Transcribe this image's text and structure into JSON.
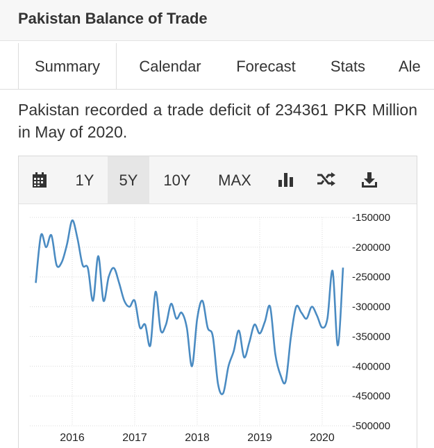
{
  "header": {
    "title": "Pakistan Balance of Trade"
  },
  "tabs": [
    {
      "label": "Summary",
      "active": true
    },
    {
      "label": "Calendar"
    },
    {
      "label": "Forecast"
    },
    {
      "label": "Stats"
    },
    {
      "label": "Ale"
    }
  ],
  "summary": {
    "text": "Pakistan recorded a trade deficit of 234361 PKR Million in May of 2020."
  },
  "toolbar": {
    "calendar_icon": "calendar-icon",
    "ranges": [
      "1Y",
      "5Y",
      "10Y",
      "MAX"
    ],
    "active_range": "5Y",
    "bar_chart_icon": "bar-chart-icon",
    "shuffle_icon": "shuffle-icon",
    "download_icon": "download-icon"
  },
  "chart_data": {
    "type": "line",
    "title": "",
    "xlabel": "",
    "ylabel": "",
    "line_color": "#4a8bc2",
    "y_ticks": [
      "-150000",
      "-200000",
      "-250000",
      "-300000",
      "-350000",
      "-400000",
      "-450000",
      "-500000"
    ],
    "x_ticks": [
      "2016",
      "2017",
      "2018",
      "2019",
      "2020"
    ],
    "ylim": [
      -500000,
      -150000
    ],
    "x": [
      "2015-06",
      "2015-07",
      "2015-08",
      "2015-09",
      "2015-10",
      "2015-11",
      "2015-12",
      "2016-01",
      "2016-02",
      "2016-03",
      "2016-04",
      "2016-05",
      "2016-06",
      "2016-07",
      "2016-08",
      "2016-09",
      "2016-10",
      "2016-11",
      "2016-12",
      "2017-01",
      "2017-02",
      "2017-03",
      "2017-04",
      "2017-05",
      "2017-06",
      "2017-07",
      "2017-08",
      "2017-09",
      "2017-10",
      "2017-11",
      "2017-12",
      "2018-01",
      "2018-02",
      "2018-03",
      "2018-04",
      "2018-05",
      "2018-06",
      "2018-07",
      "2018-08",
      "2018-09",
      "2018-10",
      "2018-11",
      "2018-12",
      "2019-01",
      "2019-02",
      "2019-03",
      "2019-04",
      "2019-05",
      "2019-06",
      "2019-07",
      "2019-08",
      "2019-09",
      "2019-10",
      "2019-11",
      "2019-12",
      "2020-01",
      "2020-02",
      "2020-03",
      "2020-04",
      "2020-05"
    ],
    "values": [
      -260000,
      -180000,
      -200000,
      -180000,
      -230000,
      -225000,
      -195000,
      -155000,
      -185000,
      -230000,
      -235000,
      -290000,
      -215000,
      -290000,
      -250000,
      -235000,
      -260000,
      -290000,
      -300000,
      -290000,
      -335000,
      -330000,
      -365000,
      -275000,
      -340000,
      -330000,
      -295000,
      -320000,
      -310000,
      -335000,
      -400000,
      -320000,
      -290000,
      -335000,
      -350000,
      -430000,
      -445000,
      -400000,
      -375000,
      -340000,
      -385000,
      -360000,
      -330000,
      -345000,
      -325000,
      -300000,
      -380000,
      -415000,
      -425000,
      -350000,
      -300000,
      -310000,
      -320000,
      -300000,
      -315000,
      -335000,
      -320000,
      -240000,
      -365000,
      -234361
    ]
  }
}
